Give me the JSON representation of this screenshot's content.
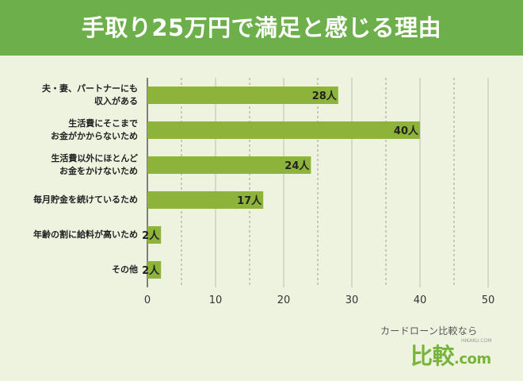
{
  "header": {
    "title": "手取り25万円で満足と感じる理由"
  },
  "chart_data": {
    "type": "bar",
    "orientation": "horizontal",
    "title": "手取り25万円で満足と感じる理由",
    "categories": [
      "夫・妻、パートナーにも\n収入がある",
      "生活費にそこまで\nお金がかからないため",
      "生活費以外にほとんど\nお金をかけないため",
      "毎月貯金を続けているため",
      "年齢の割に給料が高いため",
      "その他"
    ],
    "values": [
      28,
      40,
      24,
      17,
      2,
      2
    ],
    "value_labels": [
      "28人",
      "40人",
      "24人",
      "17人",
      "2人",
      "2人"
    ],
    "xlim": [
      0,
      50
    ],
    "xticks": [
      0,
      10,
      20,
      30,
      40,
      50
    ],
    "grid": "vertical dashed every 5",
    "bar_color": "#8db33a"
  },
  "branding": {
    "tagline": "カードローン比較なら",
    "small": "HIKAKU.COM",
    "logo_main": "比較",
    "logo_suffix": ".com"
  }
}
